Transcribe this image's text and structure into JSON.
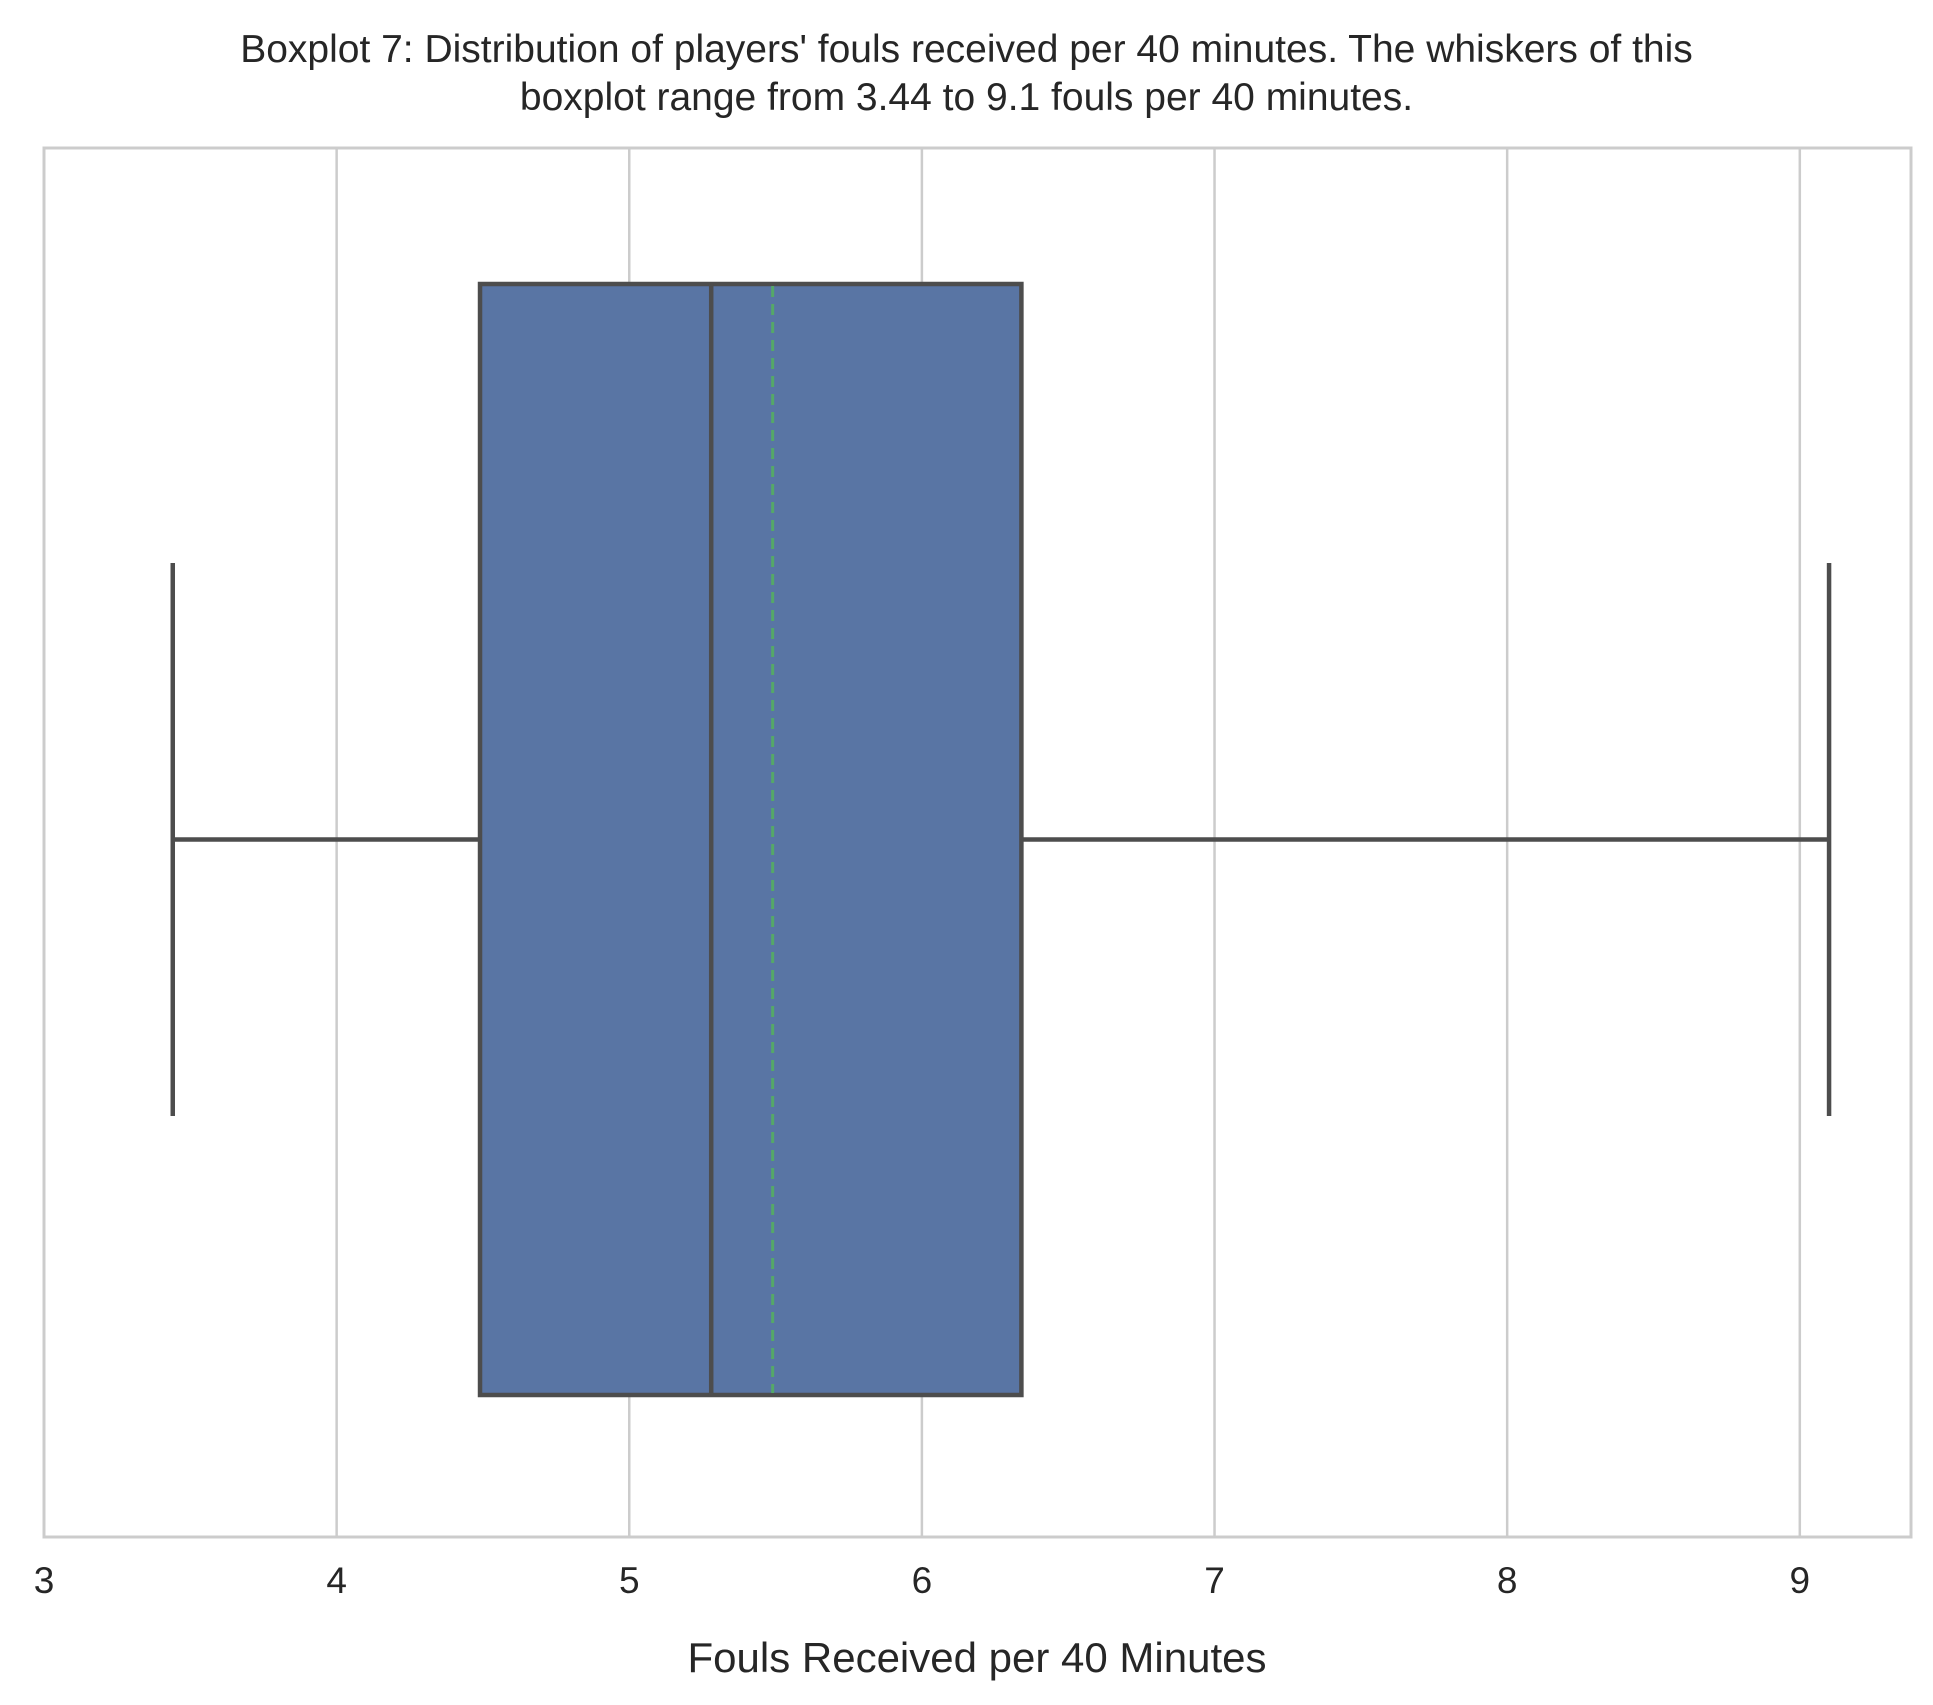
{
  "chart_data": {
    "type": "boxplot",
    "orientation": "horizontal",
    "title_lines": [
      "Boxplot 7: Distribution of players' fouls received per 40 minutes. The whiskers of this",
      "boxplot range from 3.44 to 9.1 fouls per 40 minutes."
    ],
    "xlabel": "Fouls Received per 40 Minutes",
    "ylabel": "",
    "xlim": [
      3,
      9.38
    ],
    "xticks": [
      3,
      4,
      5,
      6,
      7,
      8,
      9
    ],
    "grid": true,
    "box": {
      "whisker_low": 3.44,
      "q1": 4.49,
      "median": 5.28,
      "mean": 5.49,
      "q3": 6.34,
      "whisker_high": 9.1
    },
    "colors": {
      "box_fill": "#5975a4",
      "box_edge": "#4d4d4d",
      "mean_line": "#55a868",
      "grid": "#cccccc",
      "spine": "#cccccc"
    }
  }
}
